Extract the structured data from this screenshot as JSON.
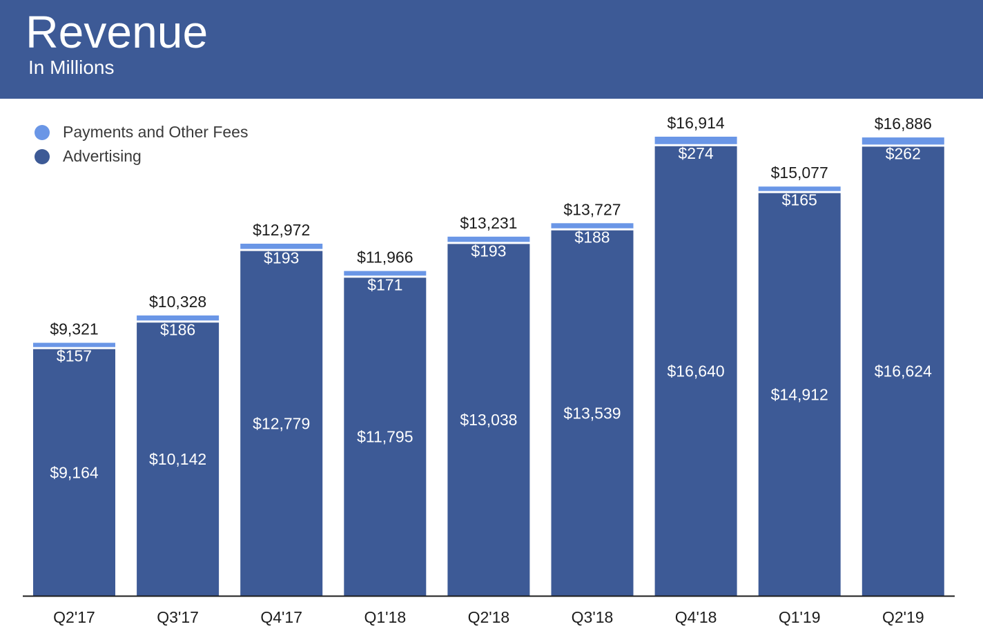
{
  "header": {
    "title": "Revenue",
    "subtitle": "In Millions"
  },
  "colors": {
    "header_bg": "#3d5a96",
    "advertising": "#3d5a96",
    "payments": "#6a96e6",
    "axis": "#1c1c1c"
  },
  "legend": {
    "items": [
      {
        "label": "Payments and Other Fees",
        "color": "#6a96e6"
      },
      {
        "label": "Advertising",
        "color": "#3d5a96"
      }
    ]
  },
  "chart_data": {
    "type": "bar",
    "stacked": true,
    "title": "Revenue",
    "subtitle": "In Millions",
    "xlabel": "",
    "ylabel": "",
    "categories": [
      "Q2'17",
      "Q3'17",
      "Q4'17",
      "Q1'18",
      "Q2'18",
      "Q3'18",
      "Q4'18",
      "Q1'19",
      "Q2'19"
    ],
    "series": [
      {
        "name": "Advertising",
        "values": [
          9164,
          10142,
          12779,
          11795,
          13038,
          13539,
          16640,
          14912,
          16624
        ],
        "labels": [
          "$9,164",
          "$10,142",
          "$12,779",
          "$11,795",
          "$13,038",
          "$13,539",
          "$16,640",
          "$14,912",
          "$16,624"
        ]
      },
      {
        "name": "Payments and Other Fees",
        "values": [
          157,
          186,
          193,
          171,
          193,
          188,
          274,
          165,
          262
        ],
        "labels": [
          "$157",
          "$186",
          "$193",
          "$171",
          "$193",
          "$188",
          "$274",
          "$165",
          "$262"
        ]
      }
    ],
    "totals": [
      9321,
      10328,
      12972,
      11966,
      13231,
      13727,
      16914,
      15077,
      16886
    ],
    "total_labels": [
      "$9,321",
      "$10,328",
      "$12,972",
      "$11,966",
      "$13,231",
      "$13,727",
      "$16,914",
      "$15,077",
      "$16,886"
    ],
    "ylim": [
      0,
      16914
    ],
    "grid": false,
    "legend_position": "top-left"
  }
}
